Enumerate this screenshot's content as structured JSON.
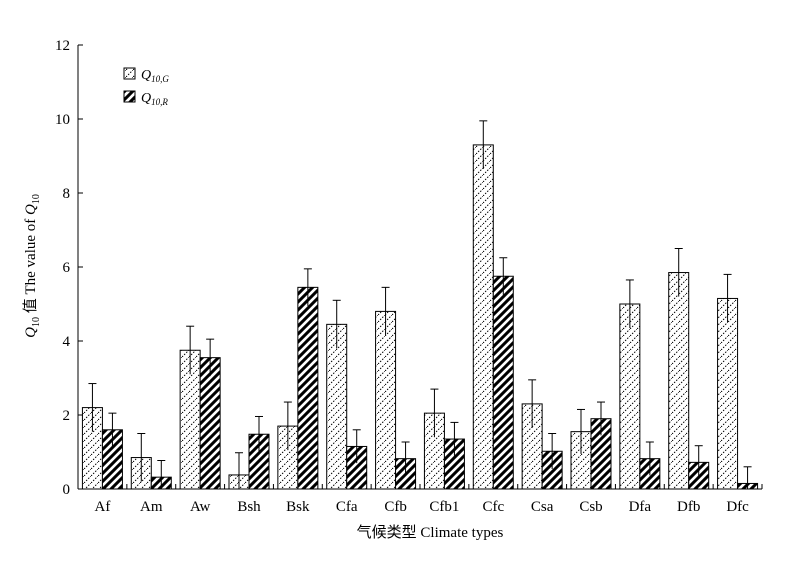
{
  "chart_data": {
    "type": "bar",
    "title": "",
    "xlabel": "气候类型 Climate types",
    "ylabel_prefix": "Q",
    "ylabel_sub": "10",
    "ylabel_rest": " 值 The value of ",
    "ylabel_suffix": "Q",
    "ylabel_suffix_sub": "10",
    "ylim": [
      0,
      12
    ],
    "yticks": [
      "0",
      "2",
      "4",
      "6",
      "8",
      "10",
      "12"
    ],
    "categories": [
      "Af",
      "Am",
      "Aw",
      "Bsh",
      "Bsk",
      "Cfa",
      "Cfb",
      "Cfb1",
      "Cfc",
      "Csa",
      "Csb",
      "Dfa",
      "Dfb",
      "Dfc"
    ],
    "series": [
      {
        "name": "Q10,G",
        "name_main": "Q",
        "name_sub": "10,G",
        "pattern": "dotted-hatch",
        "values": [
          2.2,
          0.85,
          3.75,
          0.38,
          1.7,
          4.45,
          4.8,
          2.05,
          9.3,
          2.3,
          1.55,
          5.0,
          5.85,
          5.15
        ],
        "errors": [
          0.65,
          0.65,
          0.65,
          0.6,
          0.65,
          0.65,
          0.65,
          0.65,
          0.65,
          0.65,
          0.6,
          0.65,
          0.65,
          0.65
        ]
      },
      {
        "name": "Q10,R",
        "name_main": "Q",
        "name_sub": "10,R",
        "pattern": "bold-hatch",
        "values": [
          1.6,
          0.32,
          3.55,
          1.48,
          5.45,
          1.15,
          0.82,
          1.35,
          5.75,
          1.02,
          1.9,
          0.82,
          0.72,
          0.15
        ],
        "errors": [
          0.45,
          0.45,
          0.5,
          0.48,
          0.5,
          0.45,
          0.45,
          0.45,
          0.5,
          0.48,
          0.45,
          0.45,
          0.45,
          0.45
        ]
      }
    ],
    "legend_position": "top-left",
    "grid": false
  }
}
